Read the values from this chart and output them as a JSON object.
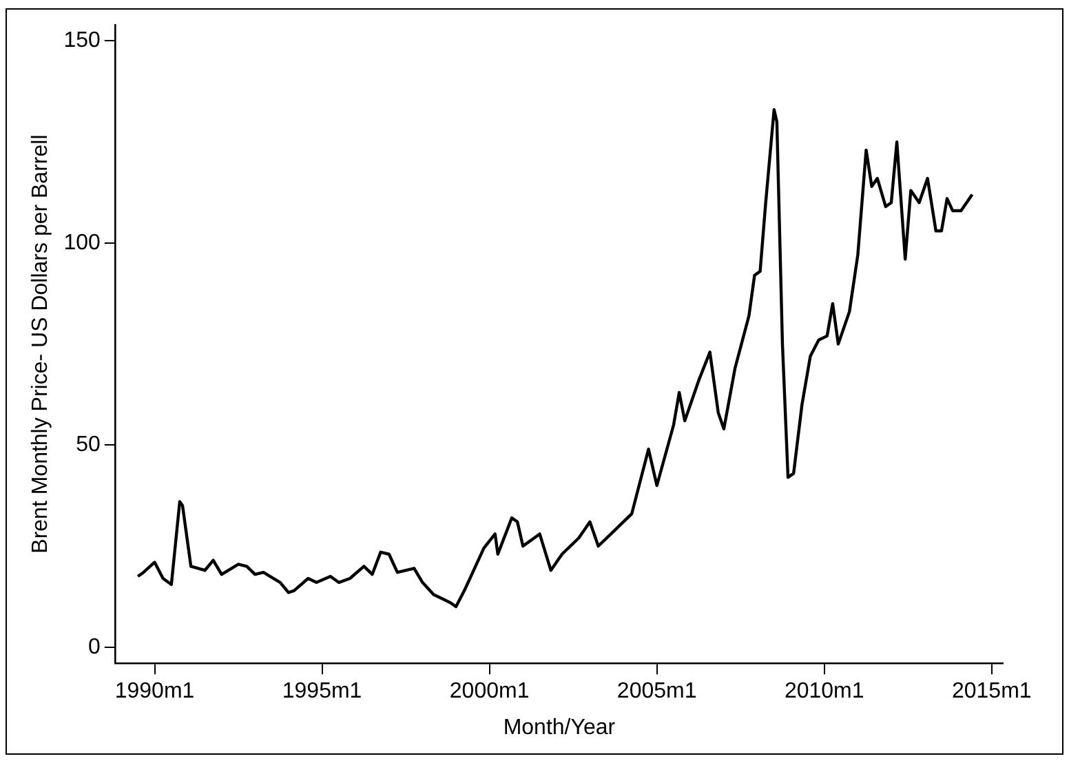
{
  "chart_data": {
    "type": "line",
    "xlabel": "Month/Year",
    "ylabel": "Brent Monthly Price- US Dollars per Barrell",
    "xlim": [
      "1988-11",
      "2015-05"
    ],
    "ylim": [
      -4,
      154
    ],
    "xticks": [
      {
        "value": "1990-01",
        "label": "1990m1"
      },
      {
        "value": "1995-01",
        "label": "1995m1"
      },
      {
        "value": "2000-01",
        "label": "2000m1"
      },
      {
        "value": "2005-01",
        "label": "2005m1"
      },
      {
        "value": "2010-01",
        "label": "2010m1"
      },
      {
        "value": "2015-01",
        "label": "2015m1"
      }
    ],
    "yticks": [
      0,
      50,
      100,
      150
    ],
    "x": [
      "1989-07",
      "1989-09",
      "1990-01",
      "1990-04",
      "1990-07",
      "1990-10",
      "1990-11",
      "1991-02",
      "1991-07",
      "1991-10",
      "1992-01",
      "1992-07",
      "1992-10",
      "1993-01",
      "1993-04",
      "1993-10",
      "1994-01",
      "1994-03",
      "1994-08",
      "1994-11",
      "1995-04",
      "1995-07",
      "1995-11",
      "1996-04",
      "1996-07",
      "1996-10",
      "1997-01",
      "1997-04",
      "1997-10",
      "1998-01",
      "1998-05",
      "1998-08",
      "1998-11",
      "1999-01",
      "1999-04",
      "1999-08",
      "1999-11",
      "2000-03",
      "2000-04",
      "2000-09",
      "2000-11",
      "2001-01",
      "2001-07",
      "2001-11",
      "2002-03",
      "2002-09",
      "2003-01",
      "2003-04",
      "2003-10",
      "2004-04",
      "2004-10",
      "2005-01",
      "2005-07",
      "2005-09",
      "2005-11",
      "2006-04",
      "2006-08",
      "2006-11",
      "2007-01",
      "2007-05",
      "2007-10",
      "2007-12",
      "2008-02",
      "2008-04",
      "2008-07",
      "2008-08",
      "2008-10",
      "2008-12",
      "2009-02",
      "2009-05",
      "2009-08",
      "2009-11",
      "2010-02",
      "2010-04",
      "2010-06",
      "2010-10",
      "2011-01",
      "2011-04",
      "2011-06",
      "2011-08",
      "2011-11",
      "2012-01",
      "2012-03",
      "2012-06",
      "2012-08",
      "2012-11",
      "2013-02",
      "2013-05",
      "2013-07",
      "2013-09",
      "2013-11",
      "2014-02",
      "2014-06"
    ],
    "series": [
      {
        "color": "#000000",
        "values": [
          17.5,
          18.5,
          21,
          17,
          15.5,
          36,
          35,
          20,
          19,
          21.5,
          18,
          20.5,
          20,
          18,
          18.5,
          16,
          13.5,
          14,
          17,
          16,
          17.5,
          16,
          17,
          20,
          18,
          23.5,
          23,
          18.5,
          19.5,
          16,
          13,
          12,
          11,
          10,
          14,
          20,
          24.5,
          28,
          23,
          32,
          31,
          25,
          28,
          19,
          23,
          27,
          31,
          25,
          29,
          33,
          49,
          40,
          55,
          63,
          56,
          66,
          73,
          58,
          54,
          69,
          82,
          92,
          93,
          110,
          133,
          130,
          75,
          42,
          43,
          60,
          72,
          76,
          77,
          85,
          75,
          83,
          97,
          123,
          114,
          116,
          109,
          110,
          125,
          96,
          113,
          110,
          116,
          103,
          103,
          111,
          108,
          108,
          112
        ]
      }
    ]
  }
}
